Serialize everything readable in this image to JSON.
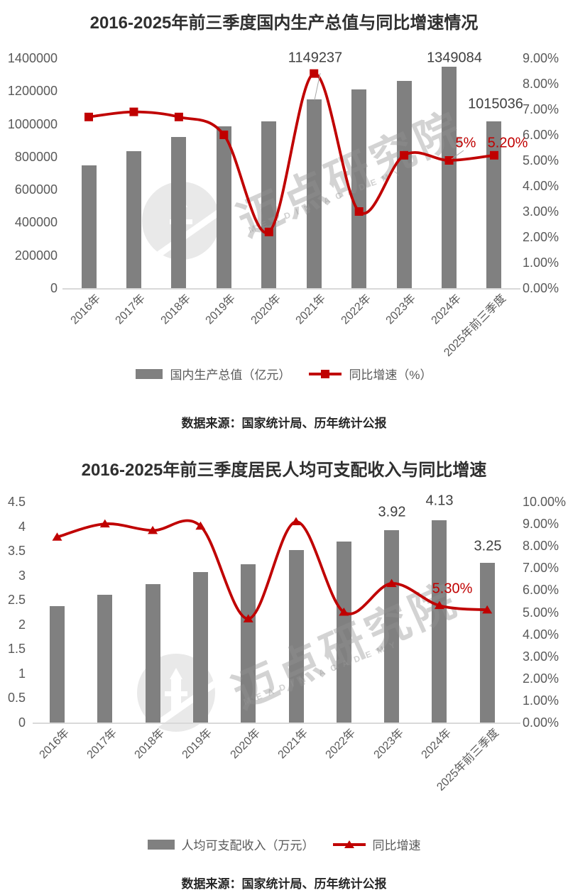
{
  "colors": {
    "bar": "#808080",
    "line": "#c00000",
    "tick": "#595959",
    "title": "#2f2f2f",
    "annotation": "#404040",
    "red": "#c00000",
    "axis_line": "#d9d9d9",
    "source": "#262626",
    "watermark_circle": "#e9e9e9"
  },
  "chart_data": [
    {
      "type": "combo-bar-line",
      "title": "2016-2025年前三季度国内生产总值与同比增速情况",
      "source": "数据来源：国家统计局、历年统计公报",
      "categories": [
        "2016年",
        "2017年",
        "2018年",
        "2019年",
        "2020年",
        "2021年",
        "2022年",
        "2023年",
        "2024年",
        "2025年前三季度"
      ],
      "series": [
        {
          "name": "国内生产总值（亿元）",
          "type": "bar",
          "axis": "left",
          "color": "#808080",
          "values": [
            746395,
            832036,
            919281,
            986515,
            1013567,
            1149237,
            1210207,
            1260582,
            1349084,
            1015036
          ]
        },
        {
          "name": "同比增速（%）",
          "type": "line",
          "axis": "right",
          "marker": "square",
          "color": "#c00000",
          "values": [
            6.7,
            6.9,
            6.7,
            6.0,
            2.2,
            8.4,
            3.0,
            5.2,
            5.0,
            5.2
          ]
        }
      ],
      "y_left": {
        "min": 0,
        "max": 1400000,
        "ticks": [
          "0",
          "200000",
          "400000",
          "600000",
          "800000",
          "1000000",
          "1200000",
          "1400000"
        ]
      },
      "y_right": {
        "min": 0,
        "max": 9,
        "ticks": [
          "0.00%",
          "1.00%",
          "2.00%",
          "3.00%",
          "4.00%",
          "5.00%",
          "6.00%",
          "7.00%",
          "8.00%",
          "9.00%"
        ]
      },
      "annotations": [
        {
          "text": "1149237",
          "series": "bar",
          "category": "2021年",
          "color": "dark"
        },
        {
          "text": "1349084",
          "series": "bar",
          "category": "2024年",
          "color": "dark"
        },
        {
          "text": "1015036",
          "series": "bar",
          "category": "2025年前三季度",
          "color": "dark"
        },
        {
          "text": "5%",
          "series": "line",
          "category": "2024年",
          "color": "red"
        },
        {
          "text": "5.20%",
          "series": "line",
          "category": "2025年前三季度",
          "color": "red"
        }
      ],
      "legend": [
        {
          "marker": "bar",
          "label": "国内生产总值（亿元）"
        },
        {
          "marker": "line-square",
          "label": "同比增速（%）"
        }
      ],
      "watermark": {
        "cn": "迈点研究院",
        "latin": "MEADIN ACADEMY"
      }
    },
    {
      "type": "combo-bar-line",
      "title": "2016-2025年前三季度居民人均可支配收入与同比增速",
      "source": "数据来源：国家统计局、历年统计公报",
      "categories": [
        "2016年",
        "2017年",
        "2018年",
        "2019年",
        "2020年",
        "2021年",
        "2022年",
        "2023年",
        "2024年",
        "2025年前三季度"
      ],
      "series": [
        {
          "name": "人均可支配收入（万元）",
          "type": "bar",
          "axis": "left",
          "color": "#808080",
          "values": [
            2.38,
            2.6,
            2.82,
            3.07,
            3.22,
            3.51,
            3.69,
            3.92,
            4.13,
            3.25
          ]
        },
        {
          "name": "同比增速",
          "type": "line",
          "axis": "right",
          "marker": "triangle",
          "color": "#c00000",
          "values": [
            8.4,
            9.0,
            8.7,
            8.9,
            4.7,
            9.1,
            5.0,
            6.3,
            5.3,
            5.1
          ]
        }
      ],
      "y_left": {
        "min": 0,
        "max": 4.5,
        "ticks": [
          "0",
          "0.5",
          "1",
          "1.5",
          "2",
          "2.5",
          "3",
          "3.5",
          "4",
          "4.5"
        ]
      },
      "y_right": {
        "min": 0,
        "max": 10,
        "ticks": [
          "0.00%",
          "1.00%",
          "2.00%",
          "3.00%",
          "4.00%",
          "5.00%",
          "6.00%",
          "7.00%",
          "8.00%",
          "9.00%",
          "10.00%"
        ]
      },
      "annotations": [
        {
          "text": "3.92",
          "series": "bar",
          "category": "2023年",
          "color": "dark"
        },
        {
          "text": "4.13",
          "series": "bar",
          "category": "2024年",
          "color": "dark"
        },
        {
          "text": "3.25",
          "series": "bar",
          "category": "2025年前三季度",
          "color": "dark"
        },
        {
          "text": "5.30%",
          "series": "line",
          "category": "2024年",
          "color": "red"
        }
      ],
      "legend": [
        {
          "marker": "bar",
          "label": "人均可支配收入（万元）"
        },
        {
          "marker": "line-triangle",
          "label": "同比增速"
        }
      ],
      "watermark": {
        "cn": "迈点研究院",
        "latin": "MEADIN ACADEMY"
      }
    }
  ]
}
